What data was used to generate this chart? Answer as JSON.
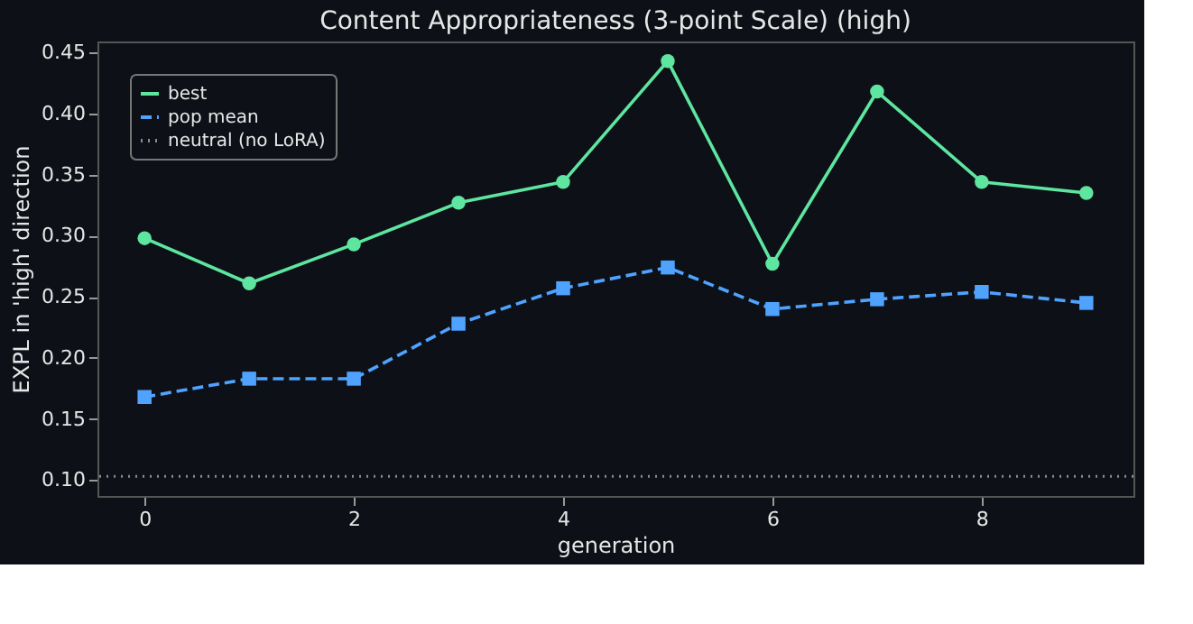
{
  "chart_data": {
    "type": "line",
    "title": "Content Appropriateness (3-point Scale) (high)",
    "xlabel": "generation",
    "ylabel": "EXPL in 'high' direction",
    "x": [
      0,
      1,
      2,
      3,
      4,
      5,
      6,
      7,
      8,
      9
    ],
    "series": [
      {
        "name": "best",
        "color": "#5ee6a0",
        "marker": "circle",
        "line_style": "solid",
        "values": [
          0.298,
          0.261,
          0.293,
          0.327,
          0.344,
          0.443,
          0.277,
          0.418,
          0.344,
          0.335
        ]
      },
      {
        "name": "pop mean",
        "color": "#4fa3ff",
        "marker": "square",
        "line_style": "dashed",
        "values": [
          0.168,
          0.183,
          0.183,
          0.228,
          0.257,
          0.274,
          0.24,
          0.248,
          0.254,
          0.245
        ]
      }
    ],
    "ref_lines": [
      {
        "axis": "y",
        "value": 0.103,
        "label": "neutral (no LoRA)",
        "color": "#8a8a8a",
        "line_style": "dotted"
      }
    ],
    "xlim": [
      -0.45,
      9.45
    ],
    "xticks": [
      0,
      2,
      4,
      6,
      8
    ],
    "ylim": [
      0.087,
      0.459
    ],
    "yticks": [
      {
        "value": 0.1,
        "label": "0.10"
      },
      0.15,
      {
        "value": 0.2,
        "label": "0.20"
      },
      0.25,
      {
        "value": 0.3,
        "label": "0.30"
      },
      0.35,
      {
        "value": 0.4,
        "label": "0.40"
      },
      0.45
    ],
    "grid": false,
    "legend": "top left"
  }
}
